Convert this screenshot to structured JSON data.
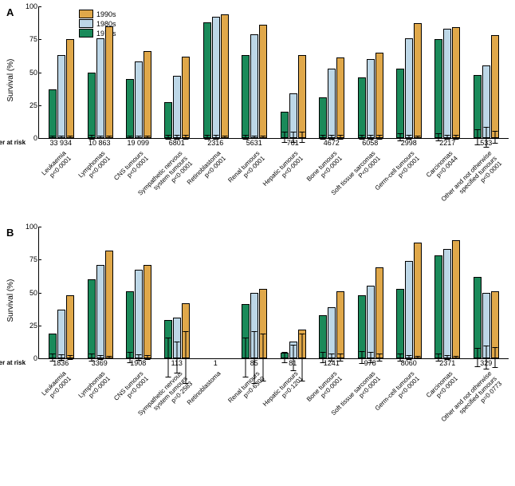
{
  "colors": {
    "c1970s": "#1a8a5a",
    "c1980s": "#bdd7e7",
    "c1990s": "#e0a84a"
  },
  "legend": [
    {
      "label": "1990s",
      "color": "#e0a84a"
    },
    {
      "label": "1980s",
      "color": "#bdd7e7"
    },
    {
      "label": "1970s",
      "color": "#1a8a5a"
    }
  ],
  "y": {
    "label": "Survival (%)",
    "min": 0,
    "max": 100,
    "ticks": [
      0,
      25,
      50,
      75,
      100
    ]
  },
  "numberAtRiskLabel": "Number at risk",
  "panels": [
    {
      "key": "A",
      "showLegend": true,
      "groups": [
        {
          "cat": "Leukaemia",
          "p": "p<0·0001",
          "risk": "33 934",
          "v": [
            37,
            63,
            75
          ],
          "e": [
            [
              1,
              1
            ],
            [
              1,
              1
            ],
            [
              1,
              1
            ]
          ]
        },
        {
          "cat": "Lymphomas",
          "p": "p<0·0001",
          "risk": "10 863",
          "v": [
            50,
            76,
            85
          ],
          "e": [
            [
              2,
              2
            ],
            [
              1.5,
              1.5
            ],
            [
              1,
              1
            ]
          ]
        },
        {
          "cat": "CNS tumours",
          "p": "p<0·0001",
          "risk": "19 099",
          "v": [
            45,
            58,
            66
          ],
          "e": [
            [
              1.5,
              1.5
            ],
            [
              1.5,
              1.5
            ],
            [
              1.5,
              1.5
            ]
          ]
        },
        {
          "cat": "Sympathetic nervous\nsystem tumours",
          "p": "p<0·0001",
          "risk": "6801",
          "v": [
            27,
            47,
            62
          ],
          "e": [
            [
              2,
              2
            ],
            [
              2,
              2
            ],
            [
              2,
              2
            ]
          ]
        },
        {
          "cat": "Retinoblastoma",
          "p": "p<0·0001",
          "risk": "2316",
          "v": [
            88,
            92,
            94
          ],
          "e": [
            [
              2,
              2
            ],
            [
              2,
              2
            ],
            [
              1.5,
              1.5
            ]
          ]
        },
        {
          "cat": "Renal tumours",
          "p": "p<0·0001",
          "risk": "5631",
          "v": [
            63,
            79,
            86
          ],
          "e": [
            [
              2,
              2
            ],
            [
              1.5,
              1.5
            ],
            [
              1.5,
              1.5
            ]
          ]
        },
        {
          "cat": "Hepatic tumours",
          "p": "p<0·0001",
          "risk": "781",
          "v": [
            20,
            34,
            63
          ],
          "e": [
            [
              4,
              4
            ],
            [
              4,
              4
            ],
            [
              4,
              4
            ]
          ]
        },
        {
          "cat": "Bone tumours",
          "p": "p<0·0001",
          "risk": "4672",
          "v": [
            31,
            53,
            61
          ],
          "e": [
            [
              2,
              2
            ],
            [
              2,
              2
            ],
            [
              2,
              2
            ]
          ]
        },
        {
          "cat": "Soft tissue sarcomas",
          "p": "P<0·0001",
          "risk": "6058",
          "v": [
            46,
            60,
            65
          ],
          "e": [
            [
              2,
              2
            ],
            [
              2,
              2
            ],
            [
              2,
              2
            ]
          ]
        },
        {
          "cat": "Germ-cell tumours",
          "p": "p<0·0001",
          "risk": "2998",
          "v": [
            53,
            76,
            87
          ],
          "e": [
            [
              3,
              3
            ],
            [
              2,
              2
            ],
            [
              1.5,
              1.5
            ]
          ]
        },
        {
          "cat": "Carcinomas",
          "p": "p=0·0044",
          "risk": "2217",
          "v": [
            75,
            83,
            84
          ],
          "e": [
            [
              3,
              3
            ],
            [
              2,
              2
            ],
            [
              2,
              2
            ]
          ]
        },
        {
          "cat": "Other and not otherwise\nspecified tumours",
          "p": "p<0·0001",
          "risk": "533",
          "v": [
            48,
            55,
            78
          ],
          "e": [
            [
              6,
              6
            ],
            [
              8,
              8
            ],
            [
              5,
              5
            ]
          ]
        }
      ]
    },
    {
      "key": "B",
      "showLegend": false,
      "groups": [
        {
          "cat": "Leukaemia",
          "p": "p<0·0001",
          "risk": "1836",
          "v": [
            19,
            37,
            48
          ],
          "e": [
            [
              3,
              3
            ],
            [
              2.5,
              2.5
            ],
            [
              2,
              2
            ]
          ]
        },
        {
          "cat": "Lymphomas",
          "p": "p<0·0001",
          "risk": "3369",
          "v": [
            60,
            71,
            82
          ],
          "e": [
            [
              3,
              3
            ],
            [
              2,
              2
            ],
            [
              1.5,
              1.5
            ]
          ]
        },
        {
          "cat": "CNS tumours",
          "p": "p<0·0001",
          "risk": "1908",
          "v": [
            51,
            67,
            71
          ],
          "e": [
            [
              4,
              4
            ],
            [
              2.5,
              2.5
            ],
            [
              2,
              2
            ]
          ]
        },
        {
          "cat": "Sympathetic nervous\nsystem tumours",
          "p": "p=0·2583",
          "risk": "113",
          "v": [
            29,
            31,
            42
          ],
          "e": [
            [
              15,
              15
            ],
            [
              12,
              12
            ],
            [
              20,
              20
            ]
          ]
        },
        {
          "cat": "Retinoblastoma",
          "p": "",
          "risk": "1",
          "v": [
            0,
            0,
            0
          ],
          "e": [
            [
              0,
              0
            ],
            [
              0,
              0
            ],
            [
              0,
              0
            ]
          ]
        },
        {
          "cat": "Renal tumours",
          "p": "p=0·6309",
          "risk": "85",
          "v": [
            41,
            50,
            53
          ],
          "e": [
            [
              15,
              15
            ],
            [
              20,
              20
            ],
            [
              18,
              18
            ]
          ]
        },
        {
          "cat": "Hepatic tumours",
          "p": "p=0·1201",
          "risk": "81",
          "v": [
            4,
            13,
            22
          ],
          "e": [
            [
              4,
              4
            ],
            [
              10,
              10
            ],
            [
              18,
              18
            ]
          ]
        },
        {
          "cat": "Bone tumours",
          "p": "p<0·0001",
          "risk": "1241",
          "v": [
            33,
            39,
            51
          ],
          "e": [
            [
              4,
              4
            ],
            [
              3,
              3
            ],
            [
              3,
              3
            ]
          ]
        },
        {
          "cat": "Soft tissue sarcomas",
          "p": "p<0·0001",
          "risk": "978",
          "v": [
            48,
            55,
            69
          ],
          "e": [
            [
              5,
              5
            ],
            [
              4,
              4
            ],
            [
              3,
              3
            ]
          ]
        },
        {
          "cat": "Germ-cell tumours",
          "p": "p<0·0001",
          "risk": "8060",
          "v": [
            53,
            74,
            88
          ],
          "e": [
            [
              3,
              3
            ],
            [
              2,
              2
            ],
            [
              1,
              1
            ]
          ]
        },
        {
          "cat": "Carcinomas",
          "p": "p<0·0001",
          "risk": "2371",
          "v": [
            78,
            83,
            90
          ],
          "e": [
            [
              3,
              3
            ],
            [
              2,
              2
            ],
            [
              1.5,
              1.5
            ]
          ]
        },
        {
          "cat": "Other and not otherwise\nspecified tumours",
          "p": "p=0·0773",
          "risk": "329",
          "v": [
            62,
            50,
            51
          ],
          "e": [
            [
              7,
              7
            ],
            [
              9,
              9
            ],
            [
              8,
              8
            ]
          ]
        }
      ]
    }
  ]
}
